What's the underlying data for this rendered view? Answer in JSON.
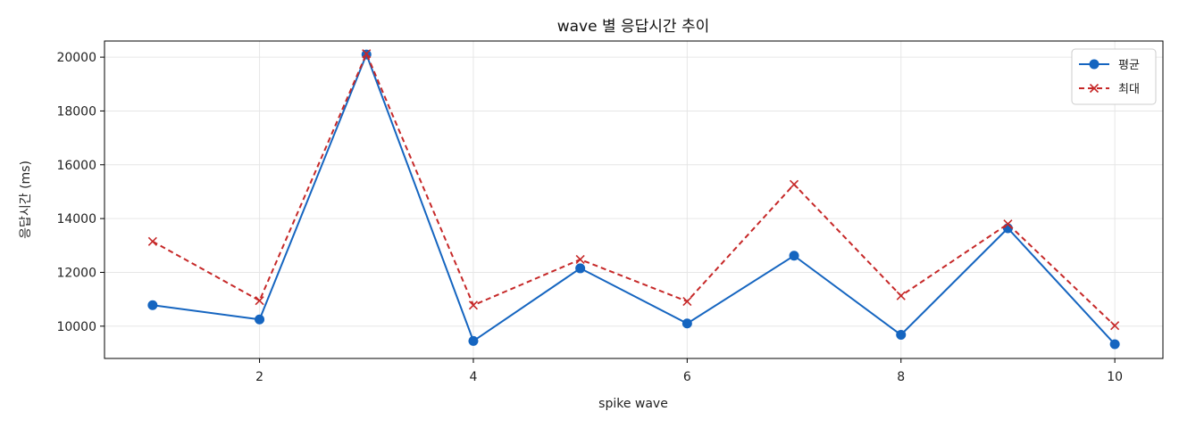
{
  "chart_data": {
    "type": "line",
    "title": "wave 별 응답시간 추이",
    "xlabel": "spike wave",
    "ylabel": "응답시간 (ms)",
    "x": [
      1,
      2,
      3,
      4,
      5,
      6,
      7,
      8,
      9,
      10
    ],
    "xlim": [
      0.55,
      10.45
    ],
    "ylim": [
      8800,
      20600
    ],
    "xticks": [
      2,
      4,
      6,
      8,
      10
    ],
    "yticks": [
      10000,
      12000,
      14000,
      16000,
      18000,
      20000
    ],
    "grid": true,
    "legend_position": "top-right",
    "series": [
      {
        "name": "평균",
        "values": [
          10780,
          10250,
          20100,
          9450,
          12150,
          10100,
          12620,
          9680,
          13640,
          9330
        ],
        "color": "#1565c0",
        "line_style": "solid",
        "marker": "circle"
      },
      {
        "name": "최대",
        "values": [
          13150,
          10950,
          20130,
          10780,
          12480,
          10920,
          15270,
          11130,
          13800,
          10020
        ],
        "color": "#c62828",
        "line_style": "dashed",
        "marker": "x"
      }
    ]
  }
}
